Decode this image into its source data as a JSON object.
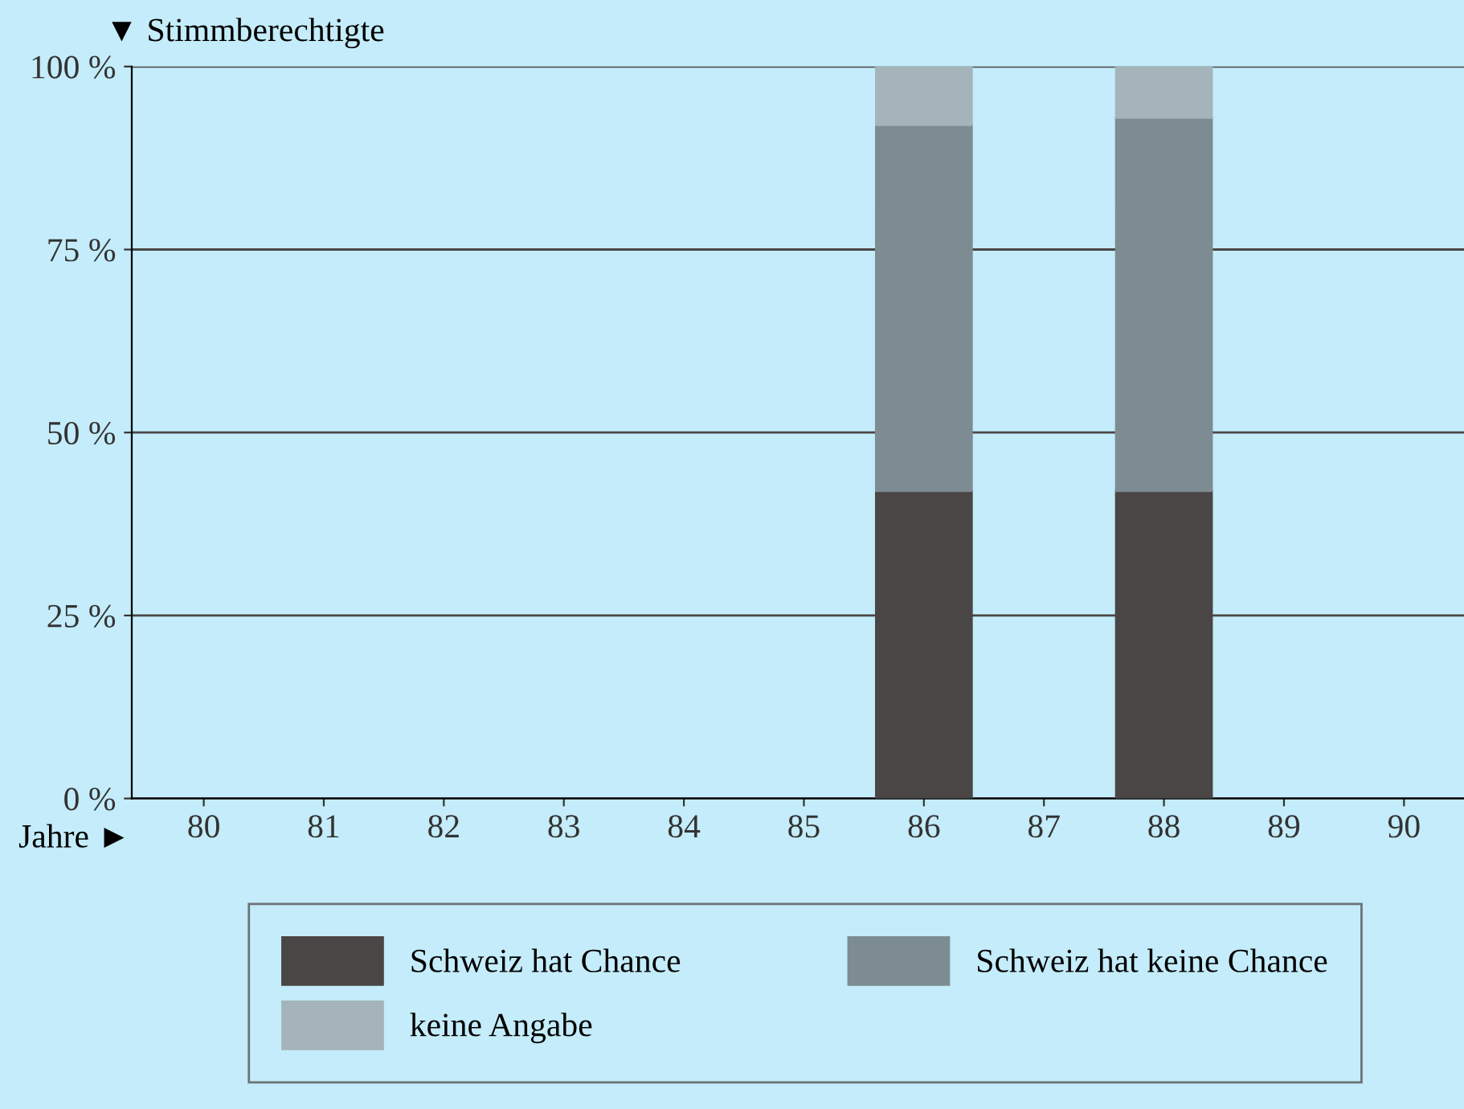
{
  "chart_data": {
    "type": "bar",
    "stacked": true,
    "xlabel": "Jahre ►",
    "ylabel": "▼ Stimmberechtigte",
    "categories": [
      "80",
      "81",
      "82",
      "83",
      "84",
      "85",
      "86",
      "87",
      "88",
      "89",
      "90"
    ],
    "series": [
      {
        "name": "Schweiz hat Chance",
        "color": "#4a4646",
        "values": [
          null,
          null,
          null,
          null,
          null,
          null,
          42,
          null,
          42,
          null,
          null
        ]
      },
      {
        "name": "Schweiz hat keine Chance",
        "color": "#7d8c92",
        "values": [
          null,
          null,
          null,
          null,
          null,
          null,
          50,
          null,
          51,
          null,
          null
        ]
      },
      {
        "name": "keine Angabe",
        "color": "#a4b4ba",
        "values": [
          null,
          null,
          null,
          null,
          null,
          null,
          8,
          null,
          7,
          null,
          null
        ]
      }
    ],
    "ylim": [
      0,
      100
    ],
    "yticks": [
      {
        "value": 0,
        "label": "0 %"
      },
      {
        "value": 25,
        "label": "25 %"
      },
      {
        "value": 50,
        "label": "50 %"
      },
      {
        "value": 75,
        "label": "75 %"
      },
      {
        "value": 100,
        "label": "100 %"
      }
    ],
    "grid": "y",
    "legend": "bottom"
  }
}
